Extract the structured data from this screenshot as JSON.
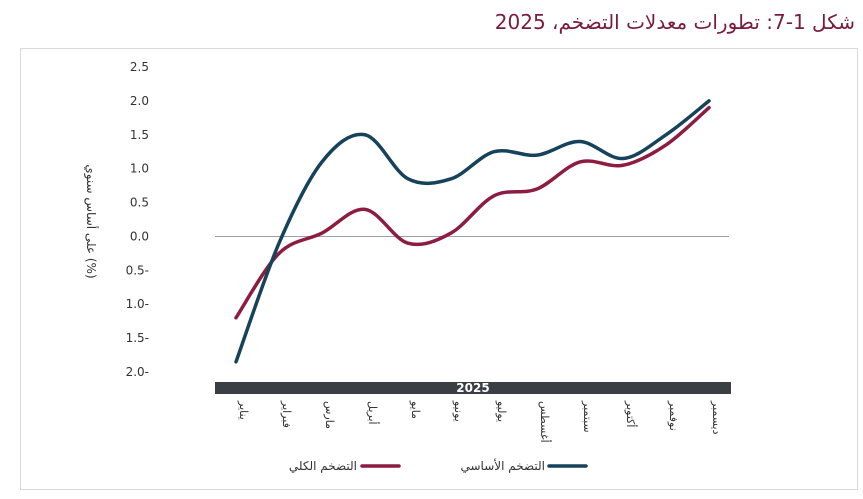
{
  "title": "شكل 1-7: تطورات معدلات التضخم، 2025",
  "chart_data": {
    "type": "line",
    "title": "شكل 1-7: تطورات معدلات التضخم، 2025",
    "ylabel": "على أساس سنوي (%)",
    "ylim": [
      -2.0,
      2.5
    ],
    "yticks": [
      2.5,
      2.0,
      1.5,
      1.0,
      0.5,
      0.0,
      -0.5,
      -1.0,
      -1.5,
      -2.0
    ],
    "ytick_labels": [
      "2.5",
      "2.0",
      "1.5",
      "1.0",
      "0.5",
      "0.0",
      "0.5-",
      "1.0-",
      "1.5-",
      "2.0-"
    ],
    "year_band": "2025",
    "categories": [
      "يناير",
      "فبراير",
      "مارس",
      "أبريل",
      "مايو",
      "يونيو",
      "يوليو",
      "أغسطس",
      "سبتمبر",
      "أكتوبر",
      "نوفمبر",
      "ديسمبر"
    ],
    "series": [
      {
        "name": "التضخم الأساسي",
        "color": "#16425b",
        "values": [
          -1.85,
          -0.1,
          1.1,
          1.5,
          0.85,
          0.85,
          1.25,
          1.2,
          1.4,
          1.15,
          1.5,
          2.0
        ]
      },
      {
        "name": "التضخم الكلي",
        "color": "#8c1c40",
        "values": [
          -1.2,
          -0.25,
          0.05,
          0.4,
          -0.1,
          0.05,
          0.6,
          0.7,
          1.1,
          1.05,
          1.35,
          1.9
        ]
      }
    ],
    "zero_line": true,
    "grid": false,
    "legend_position": "bottom"
  }
}
